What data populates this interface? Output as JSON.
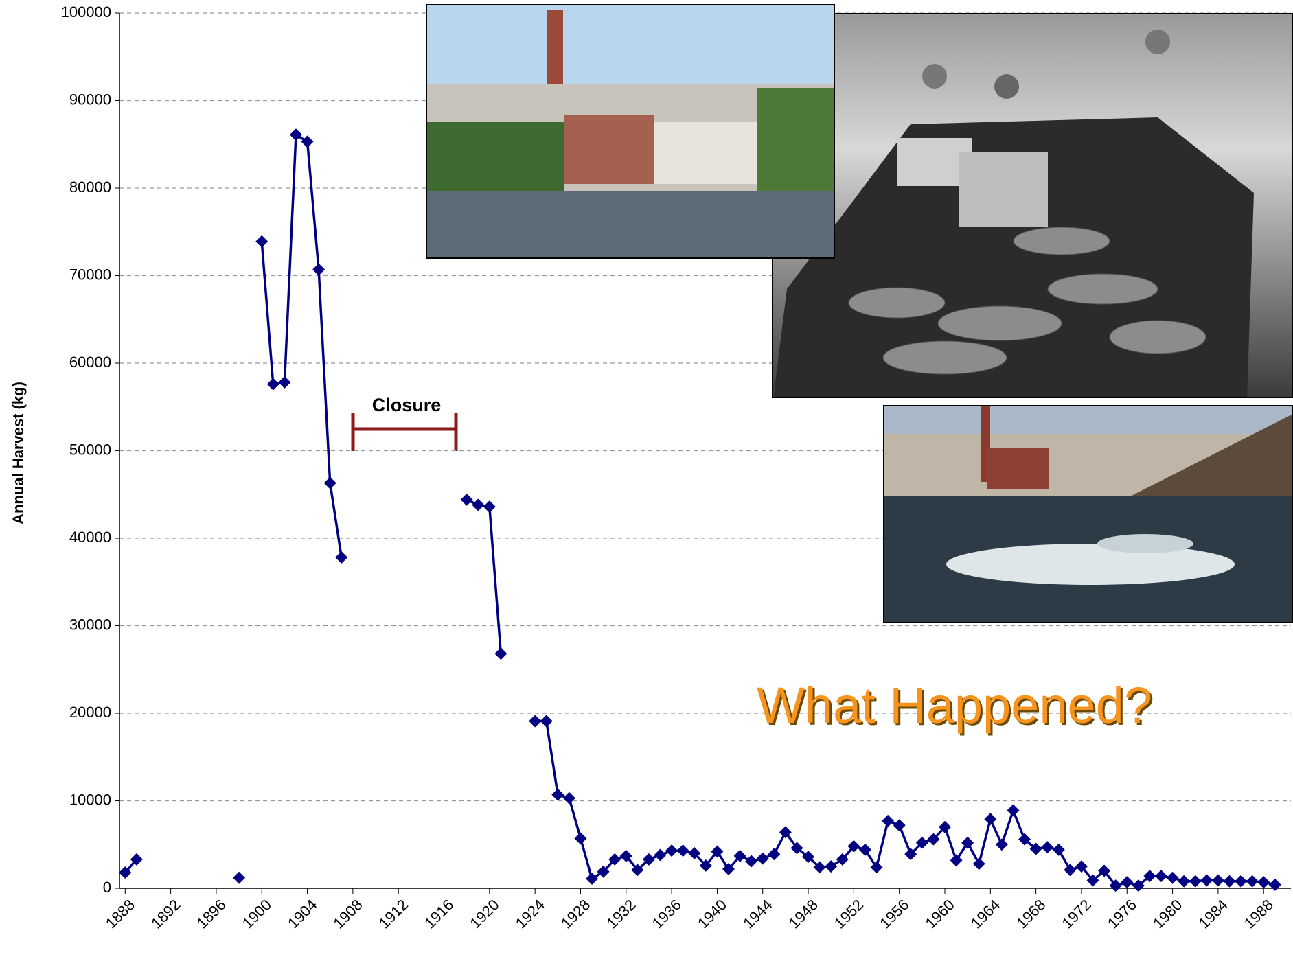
{
  "chart_data": {
    "type": "line",
    "y_label": "Annual Harvest (kg)",
    "annotation": "Closure",
    "overlay_text": "What Happened?",
    "color": "#000080",
    "x": [
      1888,
      1889,
      1890,
      1898,
      1899,
      1900,
      1901,
      1902,
      1903,
      1904,
      1905,
      1906,
      1907,
      1908,
      1918,
      1919,
      1920,
      1921,
      1922,
      1924,
      1925,
      1926,
      1927,
      1928,
      1929,
      1930,
      1931,
      1932,
      1933,
      1934,
      1935,
      1936,
      1937,
      1938,
      1939,
      1940,
      1941,
      1942,
      1943,
      1944,
      1945,
      1946,
      1947,
      1948,
      1949,
      1950,
      1951,
      1952,
      1953,
      1954,
      1955,
      1956,
      1957,
      1958,
      1959,
      1960,
      1961,
      1962,
      1963,
      1964,
      1965,
      1966,
      1967,
      1968,
      1969,
      1970,
      1971,
      1972,
      1973,
      1974,
      1975,
      1976,
      1977,
      1978,
      1979,
      1980,
      1981,
      1982,
      1983,
      1984,
      1985,
      1986,
      1987,
      1988,
      1989
    ],
    "values": [
      1800,
      3300,
      null,
      1200,
      null,
      73900,
      57600,
      57800,
      86100,
      85300,
      70700,
      46300,
      37800,
      null,
      44400,
      43800,
      43600,
      26800,
      null,
      19100,
      19100,
      10700,
      10300,
      5700,
      1100,
      1900,
      3300,
      3700,
      2100,
      3300,
      3800,
      4300,
      4300,
      4000,
      2600,
      4200,
      2200,
      3700,
      3100,
      3400,
      3900,
      6400,
      4600,
      3600,
      2400,
      2500,
      3300,
      4800,
      4400,
      2400,
      7700,
      7200,
      3900,
      5200,
      5600,
      7000,
      3200,
      5200,
      2800,
      7900,
      5000,
      8900,
      5600,
      4500,
      4700,
      4400,
      2100,
      2500,
      900,
      2000,
      300,
      700,
      300,
      1400,
      1400,
      1200,
      800,
      800,
      900,
      900,
      800,
      800,
      800,
      700,
      400
    ],
    "xlim": [
      1887.5,
      1990.4
    ],
    "xticks": [
      1888,
      1892,
      1896,
      1900,
      1904,
      1908,
      1912,
      1916,
      1920,
      1924,
      1928,
      1932,
      1936,
      1940,
      1944,
      1948,
      1952,
      1956,
      1960,
      1964,
      1968,
      1972,
      1976,
      1980,
      1984,
      1988
    ],
    "ylim": [
      0,
      100000
    ],
    "yticks": [
      0,
      10000,
      20000,
      30000,
      40000,
      50000,
      60000,
      70000,
      80000,
      90000,
      100000
    ],
    "grid": true
  }
}
